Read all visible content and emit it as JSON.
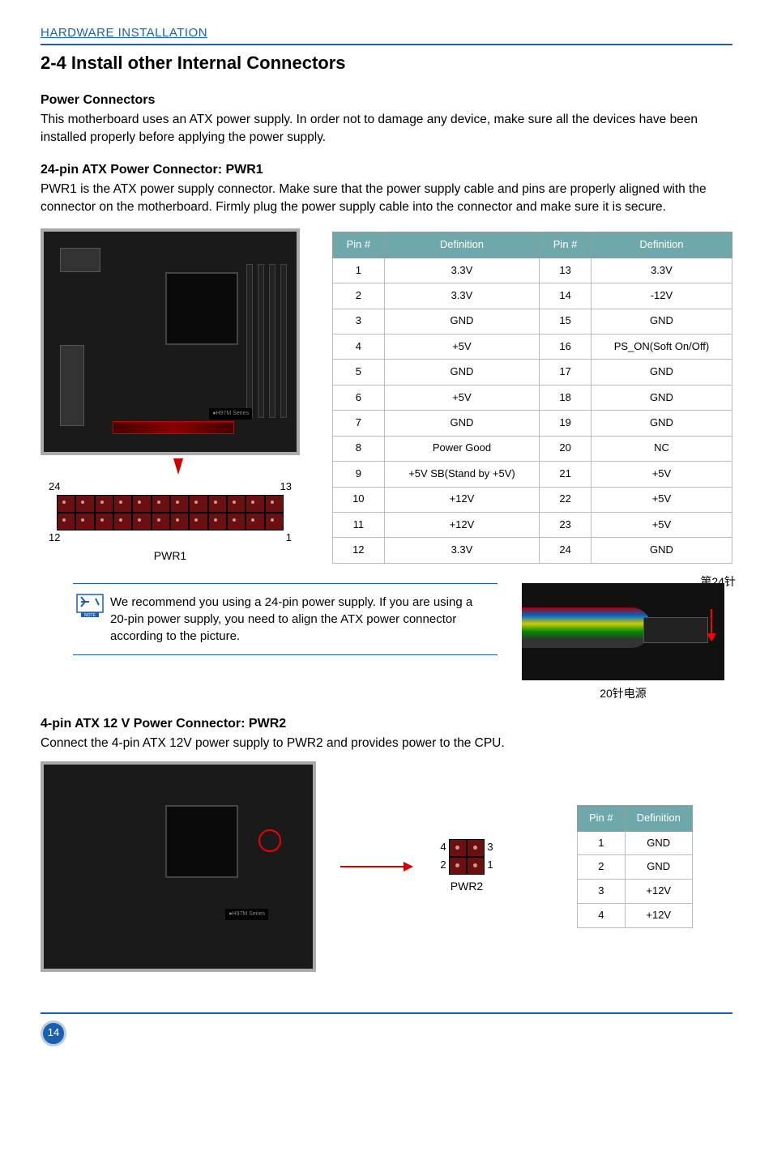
{
  "header": {
    "section": "HARDWARE INSTALLATION"
  },
  "title": "2-4 Install other Internal Connectors",
  "power_connectors": {
    "heading": "Power Connectors",
    "text": "This motherboard uses an ATX power supply. In order not to damage any device, make sure all the devices have been installed properly before applying the power supply."
  },
  "pwr1": {
    "heading": "24-pin ATX Power Connector: PWR1",
    "text": "PWR1 is the ATX power supply connector. Make sure that the power supply cable and pins are properly aligned with the connector on the motherboard. Firmly plug the power supply cable into the connector and make sure it is secure.",
    "mobo_label": "●H97M Series",
    "corner_labels": {
      "tl": "24",
      "tr": "13",
      "bl": "12",
      "br": "1"
    },
    "caption": "PWR1",
    "table": {
      "headers": [
        "Pin #",
        "Definition",
        "Pin #",
        "Definition"
      ],
      "rows": [
        [
          "1",
          "3.3V",
          "13",
          "3.3V"
        ],
        [
          "2",
          "3.3V",
          "14",
          "-12V"
        ],
        [
          "3",
          "GND",
          "15",
          "GND"
        ],
        [
          "4",
          "+5V",
          "16",
          "PS_ON(Soft On/Off)"
        ],
        [
          "5",
          "GND",
          "17",
          "GND"
        ],
        [
          "6",
          "+5V",
          "18",
          "GND"
        ],
        [
          "7",
          "GND",
          "19",
          "GND"
        ],
        [
          "8",
          "Power Good",
          "20",
          "NC"
        ],
        [
          "9",
          "+5V SB(Stand by +5V)",
          "21",
          "+5V"
        ],
        [
          "10",
          "+12V",
          "22",
          "+5V"
        ],
        [
          "11",
          "+12V",
          "23",
          "+5V"
        ],
        [
          "12",
          "3.3V",
          "24",
          "GND"
        ]
      ]
    }
  },
  "note": {
    "text": "We recommend you using a 24-pin power supply. If you are using a 20-pin power supply, you need to align the ATX power connector according to the picture.",
    "cable_pin_label": "第24针",
    "cable_caption": "20针电源"
  },
  "pwr2": {
    "heading": "4-pin ATX 12 V Power Connector: PWR2",
    "text": "Connect the 4-pin ATX 12V power supply to PWR2 and provides power to the CPU.",
    "mobo_label": "●H97M Series",
    "pins": {
      "tl": "4",
      "tr": "3",
      "bl": "2",
      "br": "1"
    },
    "caption": "PWR2",
    "table": {
      "headers": [
        "Pin #",
        "Definition"
      ],
      "rows": [
        [
          "1",
          "GND"
        ],
        [
          "2",
          "GND"
        ],
        [
          "3",
          "+12V"
        ],
        [
          "4",
          "+12V"
        ]
      ]
    }
  },
  "page_number": "14",
  "colors": {
    "link": "#1a5fb0",
    "table_header_bg": "#6fa8ab",
    "table_header_fg": "#ffffff",
    "arrow": "#c00000"
  }
}
